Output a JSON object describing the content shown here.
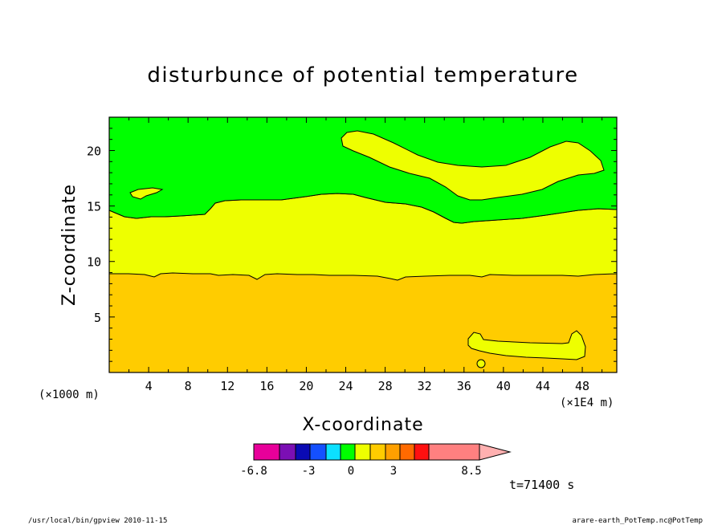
{
  "chart_data": {
    "type": "heatmap",
    "title": "disturbunce of potential temperature",
    "xlabel": "X-coordinate",
    "ylabel": "Z-coordinate",
    "x_unit_left": "(×1000 m)",
    "x_unit_right": "(×1E4 m)",
    "xlim": [
      0,
      51.5
    ],
    "ylim": [
      0,
      23
    ],
    "x_ticks": [
      4,
      8,
      12,
      16,
      20,
      24,
      28,
      32,
      36,
      40,
      44,
      48
    ],
    "y_ticks": [
      5,
      10,
      15,
      20
    ],
    "regions": [
      {
        "level": "0 to 1.5",
        "color": "#00ff00",
        "description_z": "above ~14"
      },
      {
        "level": "1.5 to 3",
        "color": "#eeff00",
        "description_z": "~9 to ~14, plus upper patches"
      },
      {
        "level": "3 to 4.5",
        "color": "#ffcc00",
        "description_z": "below ~9"
      }
    ],
    "colorbar": {
      "colors": [
        "#e8009a",
        "#7b0fb4",
        "#0a0ab4",
        "#1450ff",
        "#0ce0ff",
        "#00ff00",
        "#eeff00",
        "#ffcc00",
        "#ffa000",
        "#ff6a00",
        "#ff1010",
        "#ff8080",
        "#ffb0b0"
      ],
      "labels": [
        "-6.8",
        "-3",
        "0",
        "3",
        "8.5"
      ]
    },
    "time_label": "t=71400 s"
  },
  "footer": {
    "left": "/usr/local/bin/gpview  2010-11-15",
    "right": "arare-earth_PotTemp.nc@PotTemp"
  }
}
